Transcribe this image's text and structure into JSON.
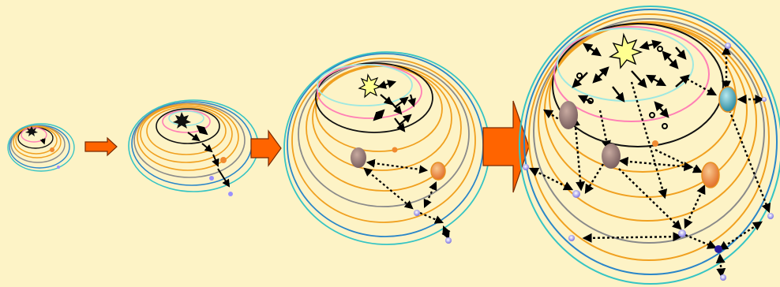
{
  "diagram": {
    "stages": [
      {
        "name": "stage-1",
        "step": 1
      },
      {
        "name": "stage-2",
        "step": 2
      },
      {
        "name": "stage-3",
        "step": 3
      },
      {
        "name": "stage-4",
        "step": 4
      }
    ],
    "arrows": [
      {
        "name": "growth-arrow-1",
        "from": "stage-1",
        "to": "stage-2"
      },
      {
        "name": "growth-arrow-2",
        "from": "stage-2",
        "to": "stage-3"
      },
      {
        "name": "growth-arrow-3",
        "from": "stage-3",
        "to": "stage-4"
      }
    ],
    "colors": {
      "background": "#fdf3c6",
      "ring_teal": "#36c4c4",
      "ring_blue": "#2a86c8",
      "ring_orange": "#f0a020",
      "ring_gray": "#8a8a8a",
      "ring_black": "#111111",
      "ring_pink": "#ff7fb5",
      "ring_cyan": "#9fe8e0",
      "arrow_fill": "#ff6400",
      "arrow_outline": "#7a2a00",
      "node_orange": "#f08a30",
      "node_gray": "#8c6f6f",
      "node_teal": "#3aa0b0",
      "node_violet": "#7a70e0",
      "star_yellow": "#ffff90"
    }
  }
}
